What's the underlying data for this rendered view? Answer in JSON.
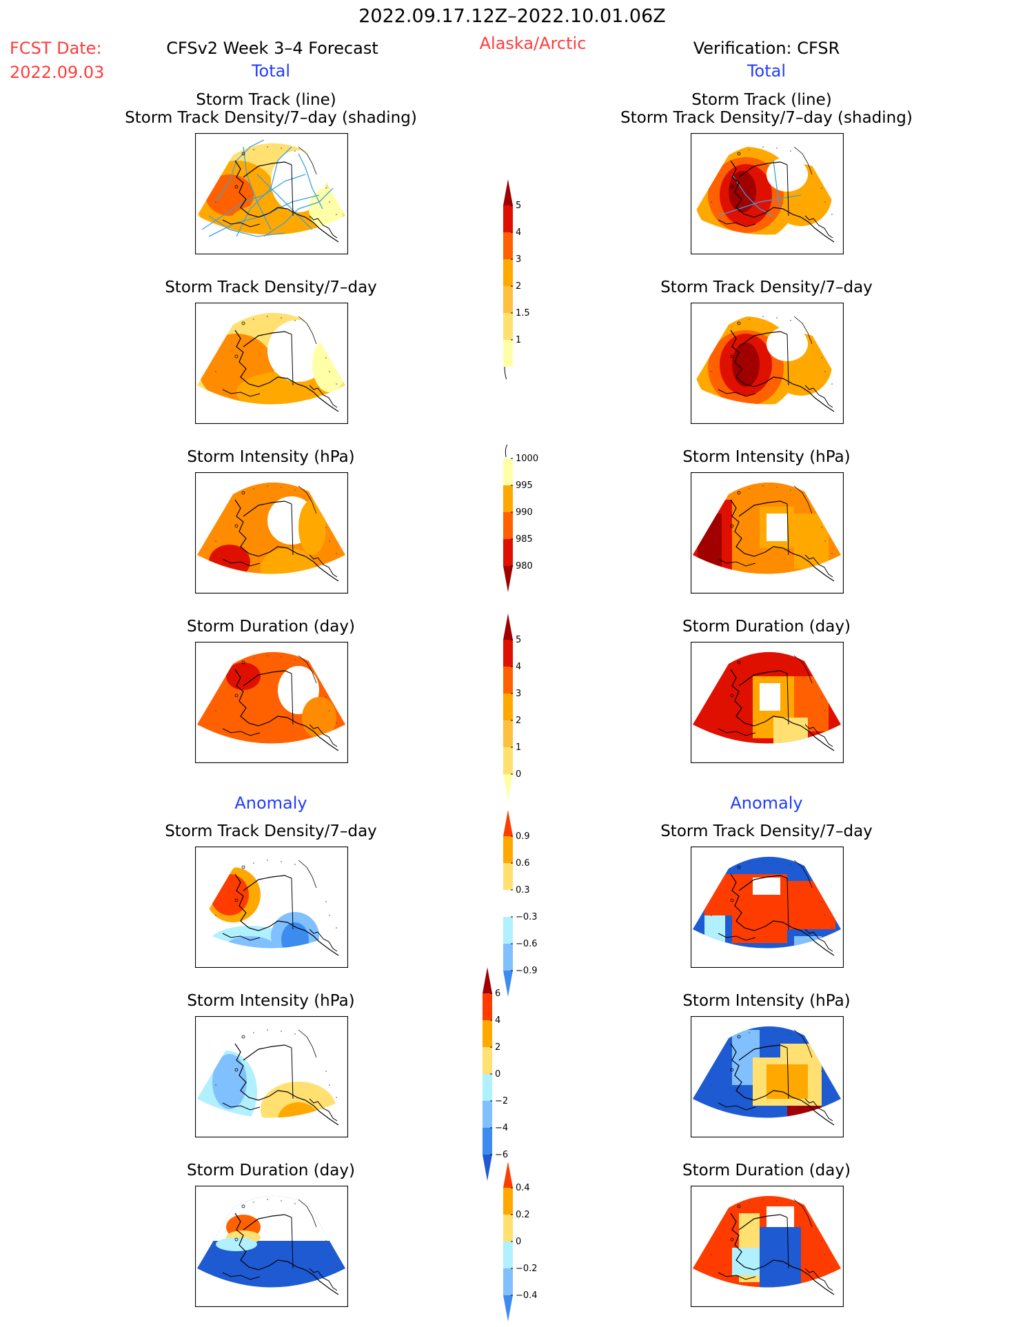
{
  "header": {
    "date_range": "2022.09.17.12Z–2022.10.01.06Z",
    "fcst_label": "FCST Date:",
    "fcst_date": "2022.09.03",
    "left_title": "CFSv2 Week 3–4 Forecast",
    "region": "Alaska/Arctic",
    "right_title": "Verification: CFSR",
    "left_subtitle": "Total",
    "right_subtitle": "Total",
    "left_anomaly": "Anomaly",
    "right_anomaly": "Anomaly"
  },
  "panels": {
    "track_line": "Storm Track (line)",
    "track_shading": "Storm Track Density/7–day (shading)",
    "density": "Storm Track Density/7–day",
    "intensity": "Storm Intensity (hPa)",
    "duration": "Storm Duration (day)"
  },
  "colors": {
    "c1": "#ffffa8",
    "c2": "#ffe070",
    "c3": "#ffa800",
    "c4": "#ff6000",
    "c5": "#e01000",
    "c6": "#a00000",
    "b1": "#b0f0ff",
    "b2": "#80c0ff",
    "b3": "#3c8cf0",
    "b4": "#1e5ad2",
    "track": "#3ca0e0",
    "outline": "#000000"
  },
  "chart_data": [
    {
      "type": "heatmap",
      "name_id": "colorbar-total-density",
      "levels": [
        "1",
        "1.5",
        "2",
        "3",
        "4",
        "5"
      ],
      "colors": [
        "#ffffa8",
        "#ffe070",
        "#ffc040",
        "#ffa800",
        "#ff6000",
        "#e01000",
        "#a00000"
      ],
      "extend": "max"
    },
    {
      "type": "heatmap",
      "name_id": "colorbar-total-intensity",
      "levels": [
        "1000",
        "995",
        "990",
        "985",
        "980"
      ],
      "colors": [
        "#ffffa8",
        "#ffa800",
        "#ff6000",
        "#e01000",
        "#a00000"
      ],
      "extend": "min"
    },
    {
      "type": "heatmap",
      "name_id": "colorbar-total-duration",
      "levels": [
        "5",
        "4",
        "3",
        "2",
        "1",
        "0"
      ],
      "colors": [
        "#a00000",
        "#e01000",
        "#ff6000",
        "#ffa800",
        "#ffc040",
        "#ffe070",
        "#ffffa8"
      ],
      "extend": "both"
    },
    {
      "type": "heatmap",
      "name_id": "colorbar-anomaly-density",
      "levels": [
        "0.9",
        "0.6",
        "0.3",
        "−0.3",
        "−0.6",
        "−0.9"
      ],
      "colors": [
        "#ff3c00",
        "#ffa800",
        "#ffe070",
        "#ffffff",
        "#b0f0ff",
        "#80c0ff",
        "#3c8cf0"
      ],
      "extend": "both"
    },
    {
      "type": "heatmap",
      "name_id": "colorbar-anomaly-intensity",
      "levels": [
        "6",
        "4",
        "2",
        "0",
        "−2",
        "−4",
        "−6"
      ],
      "colors": [
        "#a00000",
        "#ff3c00",
        "#ffa800",
        "#ffe070",
        "#b0f0ff",
        "#80c0ff",
        "#3c8cf0",
        "#1e5ad2"
      ],
      "extend": "both"
    },
    {
      "type": "heatmap",
      "name_id": "colorbar-anomaly-duration",
      "levels": [
        "0.4",
        "0.2",
        "0",
        "−0.2",
        "−0.4"
      ],
      "colors": [
        "#ff3c00",
        "#ffa800",
        "#ffe070",
        "#b0f0ff",
        "#80c0ff",
        "#3c8cf0"
      ],
      "extend": "both"
    }
  ]
}
